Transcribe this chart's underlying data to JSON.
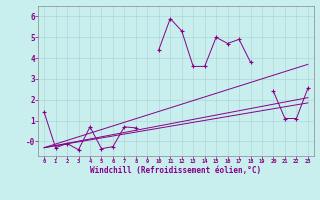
{
  "xlabel": "Windchill (Refroidissement éolien,°C)",
  "bg_color": "#c8eeee",
  "grid_color": "#b0d8d8",
  "line_color": "#880088",
  "x_data": [
    0,
    1,
    2,
    3,
    4,
    5,
    6,
    7,
    8,
    9,
    10,
    11,
    12,
    13,
    14,
    15,
    16,
    17,
    18,
    19,
    20,
    21,
    22,
    23
  ],
  "line1": [
    1.4,
    -0.3,
    -0.1,
    -0.4,
    0.7,
    -0.35,
    -0.25,
    0.7,
    0.65,
    null,
    4.4,
    5.9,
    5.3,
    3.6,
    3.6,
    5.0,
    4.7,
    4.9,
    3.8,
    null,
    2.4,
    1.1,
    1.1,
    2.55
  ],
  "trend_lines": [
    {
      "x": [
        0,
        23
      ],
      "y": [
        -0.3,
        3.7
      ]
    },
    {
      "x": [
        0,
        23
      ],
      "y": [
        -0.3,
        2.1
      ]
    },
    {
      "x": [
        0,
        23
      ],
      "y": [
        -0.3,
        1.85
      ]
    }
  ],
  "xlim": [
    -0.5,
    23.5
  ],
  "ylim": [
    -0.7,
    6.5
  ],
  "yticks": [
    0,
    1,
    2,
    3,
    4,
    5,
    6
  ],
  "ytick_labels": [
    "-0",
    "1",
    "2",
    "3",
    "4",
    "5",
    "6"
  ]
}
